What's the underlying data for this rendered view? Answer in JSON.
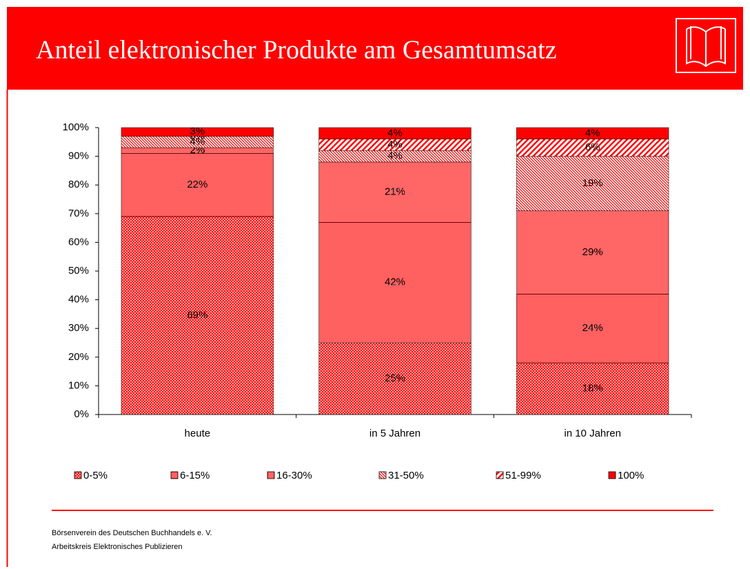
{
  "chart_data": {
    "type": "stacked_bar",
    "title": "Anteil elektronischer Produkte am Gesamtumsatz",
    "categories": [
      "heute",
      "in 5 Jahren",
      "in 10 Jahren"
    ],
    "series": [
      {
        "name": "0-5%",
        "color": "#ff0000",
        "values": [
          69,
          25,
          18
        ],
        "value_labels": [
          "69%",
          "25%",
          "18%"
        ]
      },
      {
        "name": "6-15%",
        "color": "#ff0000",
        "values": [
          22,
          42,
          24
        ],
        "value_labels": [
          "22%",
          "42%",
          "24%"
        ]
      },
      {
        "name": "16-30%",
        "color": "#ff0000",
        "values": [
          2,
          21,
          29
        ],
        "value_labels": [
          "2%",
          "21%",
          "29%"
        ]
      },
      {
        "name": "31-50%",
        "color": "#ff0000",
        "values": [
          4,
          4,
          19
        ],
        "value_labels": [
          "4%",
          "4%",
          "19%"
        ]
      },
      {
        "name": "51-99%",
        "color": "#ff0000",
        "values": [
          0,
          4,
          6
        ],
        "value_labels": [
          "0%",
          "4%",
          "6%"
        ]
      },
      {
        "name": "100%",
        "color": "#ff0000",
        "values": [
          3,
          4,
          4
        ],
        "value_labels": [
          "3%",
          "4%",
          "4%"
        ]
      }
    ],
    "ylim": [
      0,
      100
    ],
    "yticks": [
      {
        "value": 0,
        "label": "0%"
      },
      {
        "value": 10,
        "label": "10%"
      },
      {
        "value": 20,
        "label": "20%"
      },
      {
        "value": 30,
        "label": "30%"
      },
      {
        "value": 40,
        "label": "40%"
      },
      {
        "value": 50,
        "label": "50%"
      },
      {
        "value": 60,
        "label": "60%"
      },
      {
        "value": 70,
        "label": "70%"
      },
      {
        "value": 80,
        "label": "80%"
      },
      {
        "value": 90,
        "label": "90%"
      },
      {
        "value": 100,
        "label": "100%"
      }
    ],
    "legend": "bottom"
  },
  "footer": [
    "Börsenverein des Deutschen Buchhandels e. V.",
    "Arbeitskreis Elektronisches Publizieren"
  ]
}
